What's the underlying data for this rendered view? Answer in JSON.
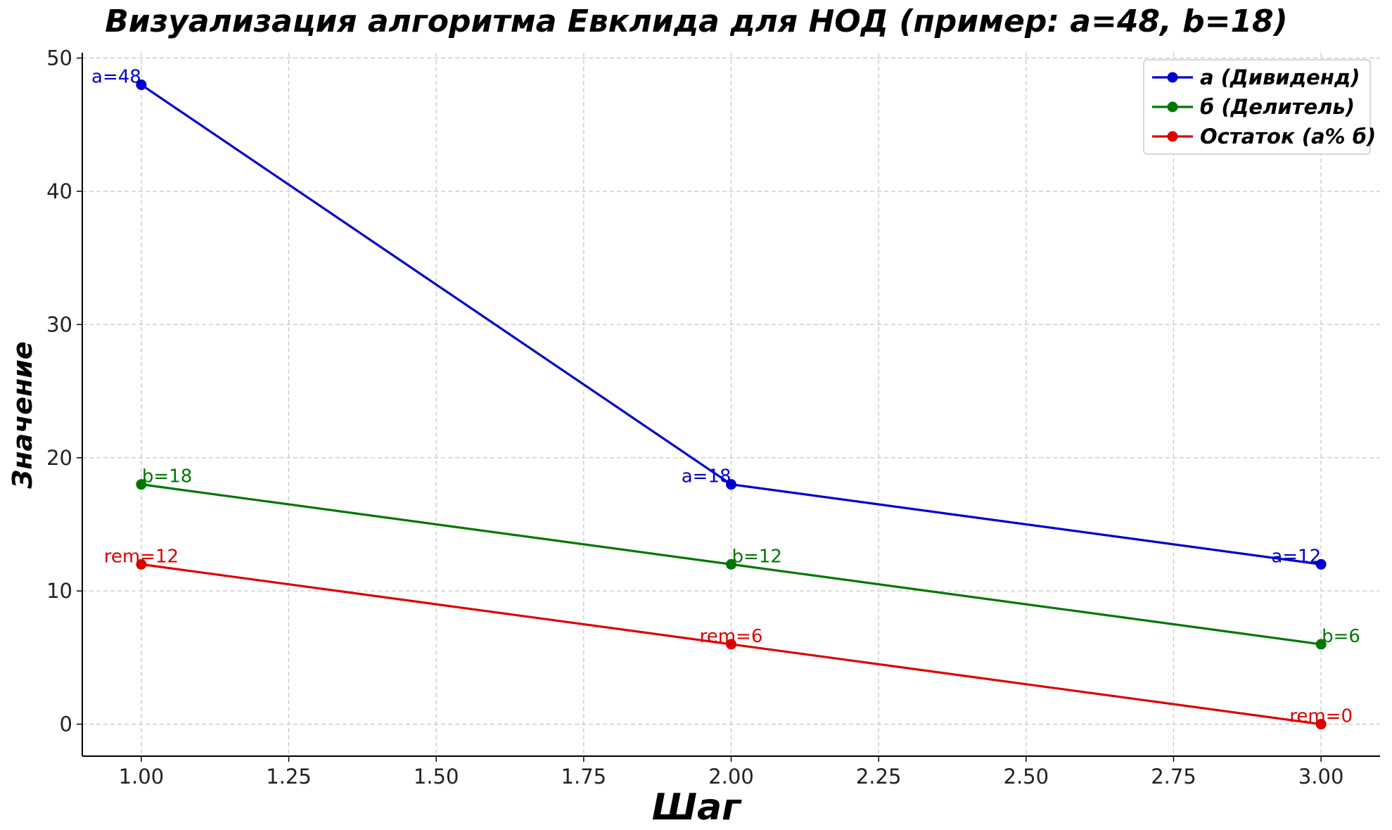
{
  "chart_data": {
    "type": "line",
    "title": "Визуализация алгоритма Евклида для НОД (пример: a=48, b=18)",
    "xlabel": "Шаг",
    "ylabel": "Значение",
    "x": [
      1,
      2,
      3
    ],
    "xlim": [
      0.9,
      3.1
    ],
    "ylim": [
      -2.4,
      50.4
    ],
    "xticks": [
      "1.00",
      "1.25",
      "1.50",
      "1.75",
      "2.00",
      "2.25",
      "2.50",
      "2.75",
      "3.00"
    ],
    "xtick_values": [
      1.0,
      1.25,
      1.5,
      1.75,
      2.0,
      2.25,
      2.5,
      2.75,
      3.0
    ],
    "yticks": [
      "0",
      "10",
      "20",
      "30",
      "40",
      "50"
    ],
    "ytick_values": [
      0,
      10,
      20,
      30,
      40,
      50
    ],
    "grid": true,
    "legend_position": "top-right",
    "series": [
      {
        "name": "а (Дивиденд)",
        "color": "#0000cc",
        "values": [
          48,
          18,
          12
        ],
        "point_labels": [
          "a=48",
          "a=18",
          "a=12"
        ],
        "label_anchor": "end"
      },
      {
        "name": "б (Делитель)",
        "color": "#007700",
        "values": [
          18,
          12,
          6
        ],
        "point_labels": [
          "b=18",
          "b=12",
          "b=6"
        ],
        "label_anchor": "start"
      },
      {
        "name": "Остаток (а% б)",
        "color": "#dd0000",
        "values": [
          12,
          6,
          0
        ],
        "point_labels": [
          "rem=12",
          "rem=6",
          "rem=0"
        ],
        "label_anchor": "middle"
      }
    ]
  }
}
